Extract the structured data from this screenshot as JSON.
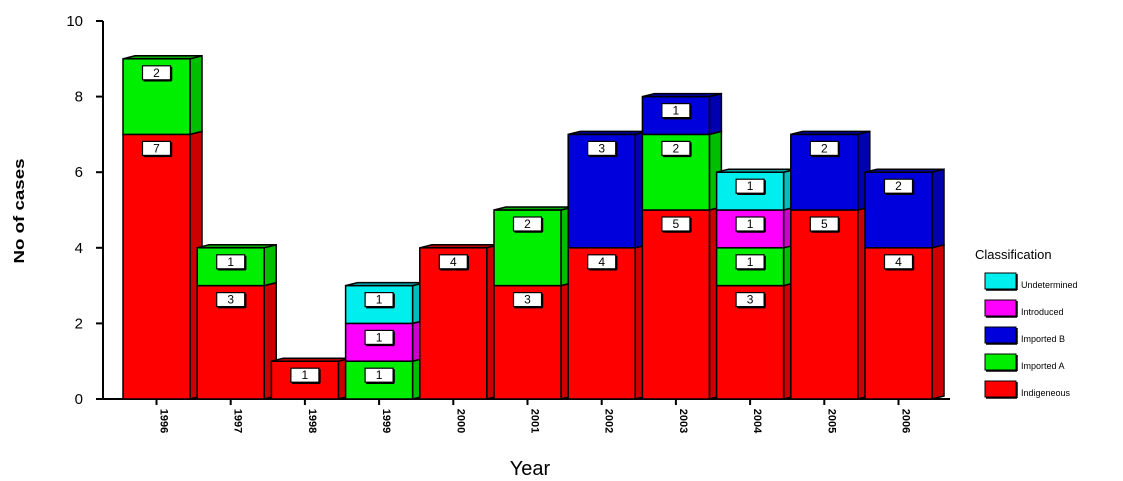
{
  "chart_data": {
    "type": "bar",
    "stacked": true,
    "three_d": true,
    "title": "",
    "xlabel": "Year",
    "ylabel": "No of cases",
    "ylim": [
      0,
      10
    ],
    "yticks": [
      0,
      2,
      4,
      6,
      8,
      10
    ],
    "grid": false,
    "legend_title": "Classification",
    "legend_position": "right",
    "categories": [
      "1996",
      "1997",
      "1998",
      "1999",
      "2000",
      "2001",
      "2002",
      "2003",
      "2004",
      "2005",
      "2006"
    ],
    "series": [
      {
        "name": "Indigeneous",
        "color": "#ff0000",
        "values": [
          7,
          3,
          1,
          0,
          4,
          3,
          4,
          5,
          3,
          5,
          4
        ]
      },
      {
        "name": "Imported A",
        "color": "#00ee00",
        "values": [
          2,
          1,
          0,
          1,
          0,
          2,
          0,
          2,
          1,
          0,
          0
        ]
      },
      {
        "name": "Imported B",
        "color": "#0000dd",
        "values": [
          0,
          0,
          0,
          0,
          0,
          0,
          3,
          1,
          0,
          2,
          2
        ]
      },
      {
        "name": "Introduced",
        "color": "#ff00ff",
        "values": [
          0,
          0,
          0,
          1,
          0,
          0,
          0,
          0,
          1,
          0,
          0
        ]
      },
      {
        "name": "Undetermined",
        "color": "#00eeee",
        "values": [
          0,
          0,
          0,
          1,
          0,
          0,
          0,
          0,
          1,
          0,
          0
        ]
      }
    ],
    "legend_order": [
      "Undetermined",
      "Introduced",
      "Imported B",
      "Imported A",
      "Indigeneous"
    ]
  }
}
